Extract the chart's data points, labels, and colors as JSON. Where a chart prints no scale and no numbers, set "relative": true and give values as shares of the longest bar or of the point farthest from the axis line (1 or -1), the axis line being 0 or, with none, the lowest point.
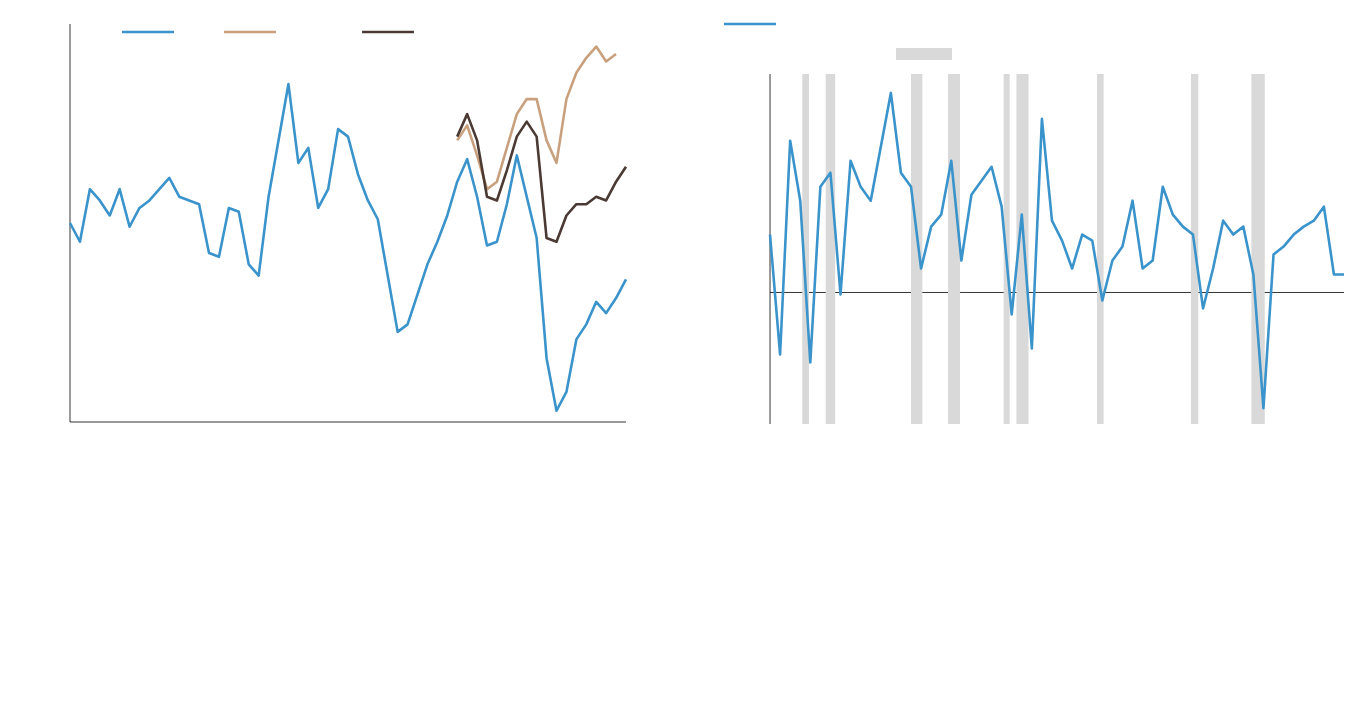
{
  "chart_data": [
    {
      "type": "line",
      "relative": true,
      "marker": "none",
      "line_style": "solid",
      "categories": [
        null,
        null,
        null,
        null,
        null,
        null,
        null,
        null,
        null,
        null,
        null,
        null,
        null,
        null,
        null,
        null,
        null,
        null,
        null,
        null,
        null,
        null,
        null,
        null,
        null,
        null,
        null,
        null,
        null,
        null,
        null,
        null,
        null,
        null,
        null,
        null,
        null,
        null,
        null,
        null,
        null,
        null,
        null,
        null,
        null,
        null,
        null,
        null,
        null,
        null,
        null,
        null,
        null,
        null,
        null,
        null,
        null
      ],
      "series": [
        {
          "color": "#3a93cb",
          "values": [
            0.53,
            0.48,
            0.62,
            0.59,
            0.55,
            0.62,
            0.52,
            0.57,
            0.59,
            0.62,
            0.65,
            0.6,
            0.59,
            0.58,
            0.45,
            0.44,
            0.57,
            0.56,
            0.42,
            0.39,
            0.6,
            0.75,
            0.9,
            0.69,
            0.73,
            0.57,
            0.62,
            0.78,
            0.76,
            0.66,
            0.59,
            0.54,
            0.39,
            0.24,
            0.26,
            0.34,
            0.42,
            0.48,
            0.55,
            0.64,
            0.7,
            0.6,
            0.47,
            0.48,
            0.58,
            0.71,
            0.6,
            0.49,
            0.17,
            0.03,
            0.08,
            0.22,
            0.26,
            0.32,
            0.29,
            0.33,
            0.38
          ]
        },
        {
          "color": "#c8a07e",
          "values": [
            null,
            null,
            null,
            null,
            null,
            null,
            null,
            null,
            null,
            null,
            null,
            null,
            null,
            null,
            null,
            null,
            null,
            null,
            null,
            null,
            null,
            null,
            null,
            null,
            null,
            null,
            null,
            null,
            null,
            null,
            null,
            null,
            null,
            null,
            null,
            null,
            null,
            null,
            null,
            0.75,
            0.79,
            0.71,
            0.62,
            0.64,
            0.73,
            0.82,
            0.86,
            0.86,
            0.75,
            0.69,
            0.86,
            0.93,
            0.97,
            1.0,
            0.96,
            0.98,
            null
          ]
        },
        {
          "color": "#4a3a33",
          "values": [
            null,
            null,
            null,
            null,
            null,
            null,
            null,
            null,
            null,
            null,
            null,
            null,
            null,
            null,
            null,
            null,
            null,
            null,
            null,
            null,
            null,
            null,
            null,
            null,
            null,
            null,
            null,
            null,
            null,
            null,
            null,
            null,
            null,
            null,
            null,
            null,
            null,
            null,
            null,
            0.76,
            0.82,
            0.75,
            0.6,
            0.59,
            0.67,
            0.76,
            0.8,
            0.76,
            0.49,
            0.48,
            0.55,
            0.58,
            0.58,
            0.6,
            0.59,
            0.64,
            0.68
          ]
        }
      ]
    },
    {
      "type": "line",
      "relative": true,
      "marker": "none",
      "line_style": "solid",
      "categories": [
        null,
        null,
        null,
        null,
        null,
        null,
        null,
        null,
        null,
        null,
        null,
        null,
        null,
        null,
        null,
        null,
        null,
        null,
        null,
        null,
        null,
        null,
        null,
        null,
        null,
        null,
        null,
        null,
        null,
        null,
        null,
        null,
        null,
        null,
        null,
        null,
        null,
        null,
        null,
        null,
        null,
        null,
        null,
        null,
        null,
        null,
        null,
        null,
        null,
        null,
        null,
        null,
        null,
        null,
        null,
        null,
        null,
        null
      ],
      "series": [
        {
          "color": "#3a93cb",
          "values": [
            0.29,
            -0.31,
            0.76,
            0.46,
            -0.35,
            0.53,
            0.6,
            -0.01,
            0.66,
            0.53,
            0.46,
            0.73,
            1.0,
            0.6,
            0.53,
            0.12,
            0.33,
            0.39,
            0.66,
            0.16,
            0.49,
            0.56,
            0.63,
            0.43,
            -0.11,
            0.39,
            -0.28,
            0.87,
            0.36,
            0.26,
            0.12,
            0.29,
            0.26,
            -0.04,
            0.16,
            0.23,
            0.46,
            0.12,
            0.16,
            0.53,
            0.39,
            0.33,
            0.29,
            -0.08,
            0.12,
            0.36,
            0.29,
            0.33,
            0.09,
            -0.58,
            0.19,
            0.23,
            0.29,
            0.33,
            0.36,
            0.43,
            0.09,
            0.09
          ]
        }
      ]
    }
  ]
}
